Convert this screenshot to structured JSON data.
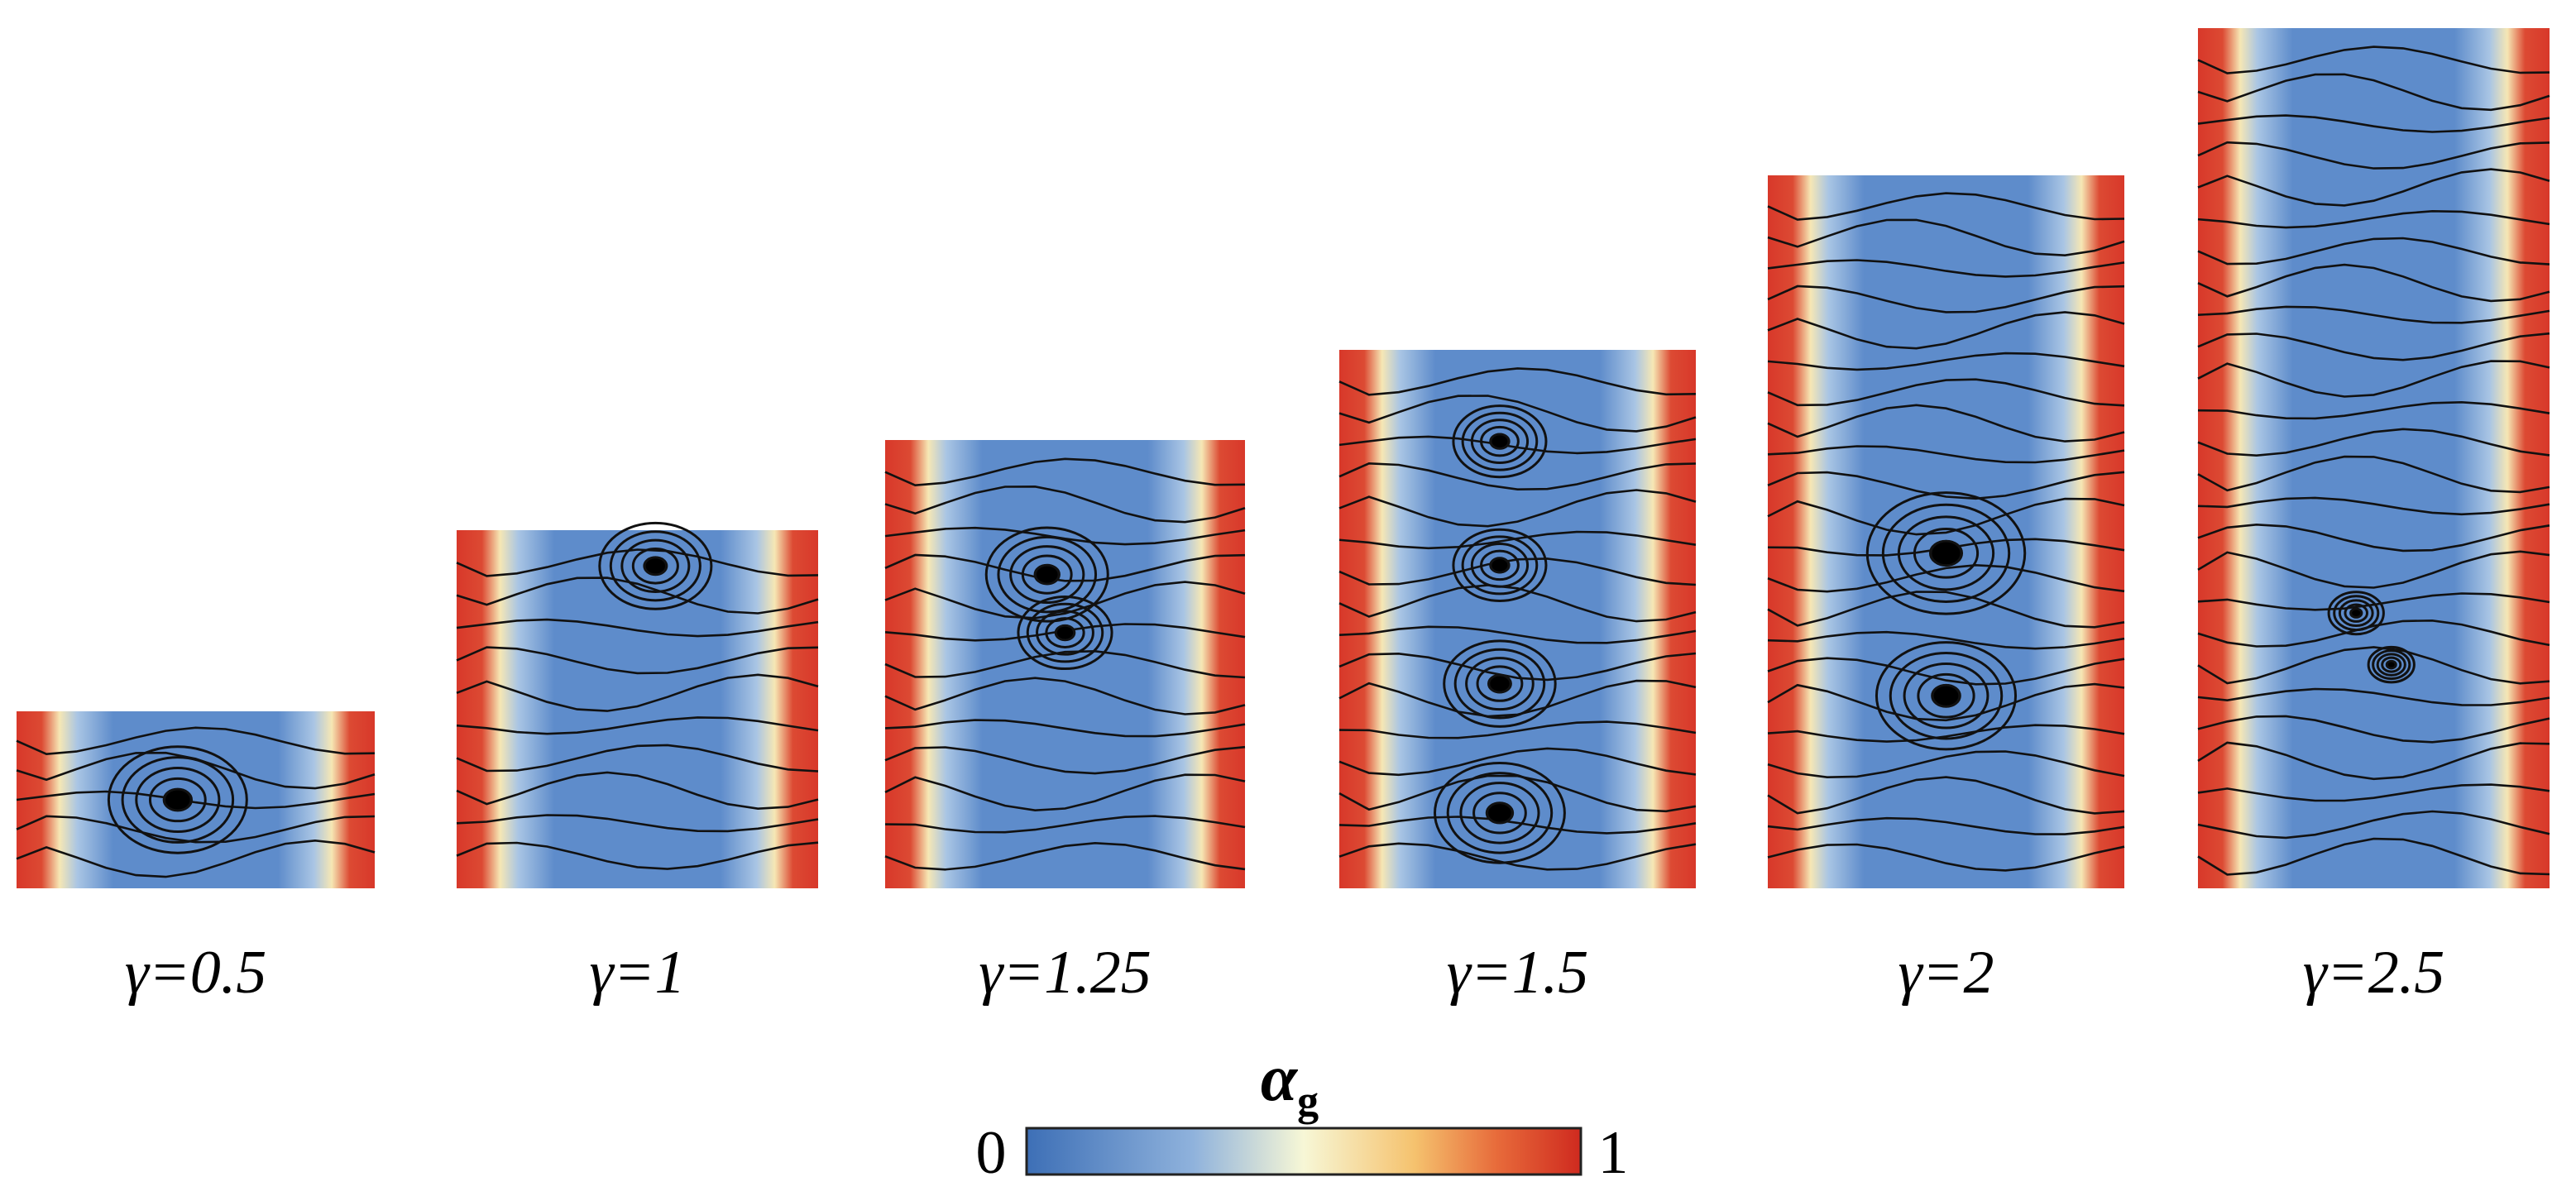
{
  "panels": [
    {
      "label": "γ=0.5"
    },
    {
      "label": "γ=1"
    },
    {
      "label": "γ=1.25"
    },
    {
      "label": "γ=1.5"
    },
    {
      "label": "γ=2"
    },
    {
      "label": "γ=2.5"
    }
  ],
  "colorbar": {
    "label_main": "α",
    "label_sub": "g",
    "min_label": "0",
    "max_label": "1"
  }
}
